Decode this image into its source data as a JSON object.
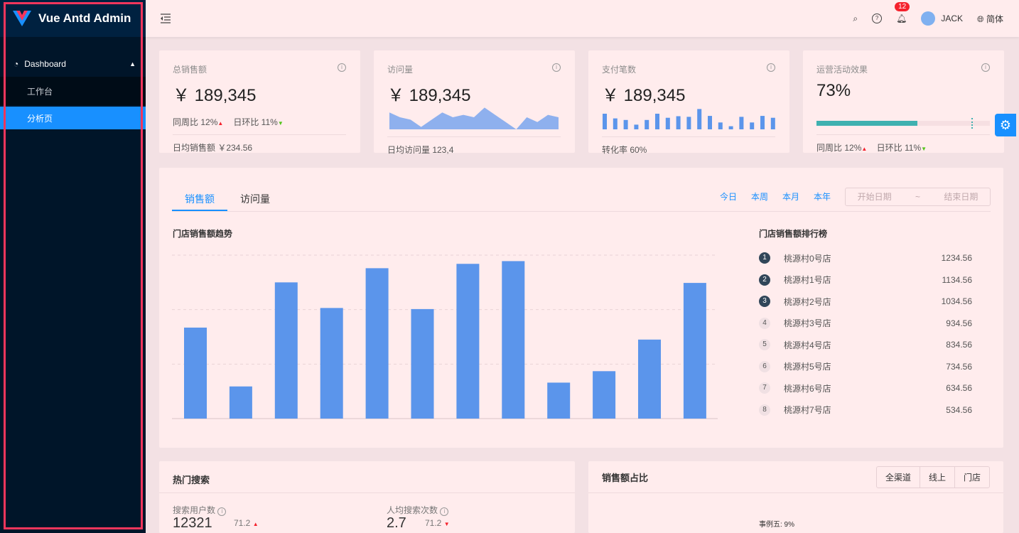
{
  "app": {
    "title": "Vue Antd Admin"
  },
  "sidebar": {
    "parent": "Dashboard",
    "items": [
      {
        "label": "工作台",
        "active": false
      },
      {
        "label": "分析页",
        "active": true
      }
    ]
  },
  "header": {
    "user": "JACK",
    "lang": "简体",
    "notifications": "12"
  },
  "stats": [
    {
      "title": "总销售额",
      "value": "￥ 189,345",
      "wow_label": "同周比",
      "wow": "12%",
      "dod_label": "日环比",
      "dod": "11%",
      "footer": "日均销售额 ￥234.56"
    },
    {
      "title": "访问量",
      "value": "￥ 189,345",
      "footer": "日均访问量 123,4"
    },
    {
      "title": "支付笔数",
      "value": "￥ 189,345",
      "footer": "转化率 60%"
    },
    {
      "title": "运营活动效果",
      "value": "73%",
      "progress": 73,
      "wow_label": "同周比",
      "wow": "12%",
      "dod_label": "日环比",
      "dod": "11%"
    }
  ],
  "sales": {
    "tabs": [
      "销售额",
      "访问量"
    ],
    "ranges": [
      "今日",
      "本周",
      "本月",
      "本年"
    ],
    "start_placeholder": "开始日期",
    "sep": "~",
    "end_placeholder": "结束日期",
    "chart_title": "门店销售额趋势",
    "rank_title": "门店销售额排行榜",
    "rank": [
      {
        "n": "1",
        "name": "桃源村0号店",
        "v": "1234.56"
      },
      {
        "n": "2",
        "name": "桃源村1号店",
        "v": "1134.56"
      },
      {
        "n": "3",
        "name": "桃源村2号店",
        "v": "1034.56"
      },
      {
        "n": "4",
        "name": "桃源村3号店",
        "v": "934.56"
      },
      {
        "n": "5",
        "name": "桃源村4号店",
        "v": "834.56"
      },
      {
        "n": "6",
        "name": "桃源村5号店",
        "v": "734.56"
      },
      {
        "n": "7",
        "name": "桃源村6号店",
        "v": "634.56"
      },
      {
        "n": "8",
        "name": "桃源村7号店",
        "v": "534.56"
      }
    ]
  },
  "chart_data": [
    {
      "type": "bar",
      "values": [
        167,
        59,
        250,
        203,
        276,
        201,
        284,
        289,
        66,
        87,
        145,
        249
      ],
      "ylim": [
        0,
        300
      ],
      "grid": true,
      "color": "#5b95eb"
    },
    {
      "type": "area",
      "values": [
        7,
        5,
        4,
        1,
        4,
        7,
        5,
        6,
        5,
        9,
        6,
        3,
        0,
        5,
        3,
        6,
        5
      ],
      "color": "#8eb0ee"
    },
    {
      "type": "bar",
      "values": [
        5,
        3.5,
        3,
        1.5,
        3,
        5,
        3.7,
        4.2,
        4,
        6.5,
        4.3,
        2.2,
        1,
        4,
        2.2,
        4.3,
        3.7
      ],
      "color": "#5b95eb"
    }
  ],
  "search": {
    "title": "热门搜索",
    "users_label": "搜索用户数",
    "users": "12321",
    "users_rate": "71.2",
    "per_label": "人均搜索次数",
    "per": "2.7",
    "per_rate": "71.2"
  },
  "share": {
    "title": "销售额占比",
    "seg": [
      "全渠道",
      "线上",
      "门店"
    ],
    "label": "事例五: 9%"
  },
  "colors": {
    "primary": "#1890ff",
    "sidebar": "#001529",
    "progress": "#3fb1b0",
    "up": "#f5222d",
    "down": "#52c41a"
  }
}
